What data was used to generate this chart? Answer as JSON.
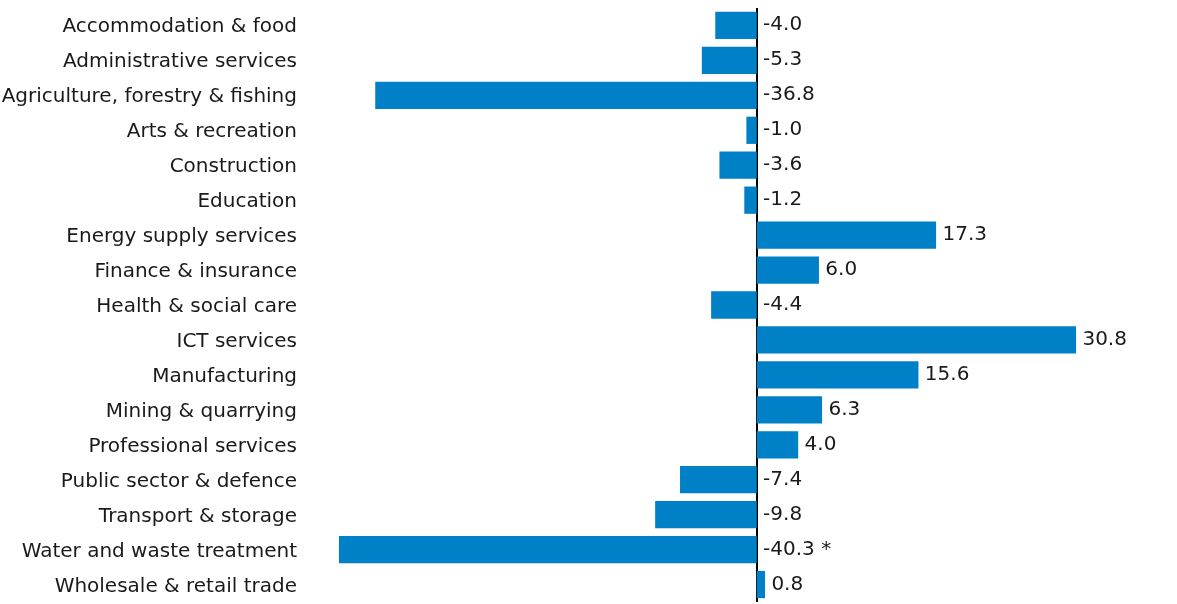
{
  "chart_data": {
    "type": "bar",
    "orientation": "horizontal",
    "categories": [
      "Accommodation & food",
      "Administrative services",
      "Agriculture, forestry & fishing",
      "Arts & recreation",
      "Construction",
      "Education",
      "Energy supply services",
      "Finance & insurance",
      "Health & social care",
      "ICT services",
      "Manufacturing",
      "Mining & quarrying",
      "Professional services",
      "Public sector & defence",
      "Transport & storage",
      "Water and waste treatment",
      "Wholesale & retail trade"
    ],
    "values": [
      -4.0,
      -5.3,
      -36.8,
      -1.0,
      -3.6,
      -1.2,
      17.3,
      6.0,
      -4.4,
      30.8,
      15.6,
      6.3,
      4.0,
      -7.4,
      -9.8,
      -40.3,
      0.8
    ],
    "value_labels": [
      "-4.0",
      "-5.3",
      "-36.8",
      "-1.0",
      "-3.6",
      "-1.2",
      "17.3",
      "6.0",
      "-4.4",
      "30.8",
      "15.6",
      "6.3",
      "4.0",
      "-7.4",
      "-9.8",
      "-40.3 *",
      "0.8"
    ],
    "color": "#0080c6",
    "tick_labels": "y"
  }
}
